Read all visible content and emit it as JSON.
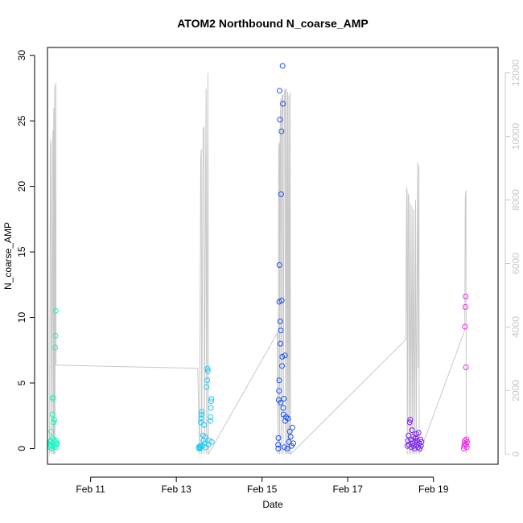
{
  "chart_data": {
    "type": "scatter",
    "title": "ATOM2 Northbound N_coarse_AMP",
    "xlabel": "Date",
    "ylabel": "N_coarse_AMP",
    "xlim": [
      "2024-02-09T23:50",
      "2024-02-20T12:10"
    ],
    "ylim": [
      -1.2,
      30.6
    ],
    "x_ticks": [
      {
        "label": "Feb 11",
        "value": "2024-02-11T00:00"
      },
      {
        "label": "Feb 13",
        "value": "2024-02-13T00:00"
      },
      {
        "label": "Feb 15",
        "value": "2024-02-15T00:00"
      },
      {
        "label": "Feb 17",
        "value": "2024-02-17T00:00"
      },
      {
        "label": "Feb 19",
        "value": "2024-02-19T00:00"
      }
    ],
    "y_ticks": [
      0,
      5,
      10,
      15,
      20,
      25,
      30
    ],
    "y2_ticks": [
      0,
      2000,
      4000,
      6000,
      8000,
      10000,
      12000
    ],
    "y2lim": [
      -320,
      12800
    ],
    "grid": false,
    "legend": "none",
    "gray_line_color": "#c8c8c8",
    "series": [
      {
        "color": "#22f5c0",
        "points": [
          [
            "2024-02-10T01:10",
            0.1
          ],
          [
            "2024-02-10T01:20",
            0.3
          ],
          [
            "2024-02-10T01:30",
            0.5
          ],
          [
            "2024-02-10T01:40",
            0.2
          ],
          [
            "2024-02-10T01:50",
            0.6
          ],
          [
            "2024-02-10T02:00",
            1.3
          ],
          [
            "2024-02-10T02:10",
            0.0
          ],
          [
            "2024-02-10T02:20",
            0.4
          ],
          [
            "2024-02-10T02:30",
            0.8
          ],
          [
            "2024-02-10T02:40",
            2.6
          ],
          [
            "2024-02-10T02:50",
            3.8
          ],
          [
            "2024-02-10T03:00",
            3.9
          ],
          [
            "2024-02-10T03:10",
            0.2
          ],
          [
            "2024-02-10T03:20",
            2.0
          ],
          [
            "2024-02-10T03:30",
            0.7
          ],
          [
            "2024-02-10T03:40",
            2.2
          ],
          [
            "2024-02-10T03:50",
            0.1
          ],
          [
            "2024-02-10T04:00",
            0.5
          ],
          [
            "2024-02-10T04:10",
            7.7
          ],
          [
            "2024-02-10T04:20",
            8.6
          ],
          [
            "2024-02-10T04:30",
            10.5
          ],
          [
            "2024-02-10T04:40",
            0.3
          ],
          [
            "2024-02-10T04:50",
            0.6
          ],
          [
            "2024-02-10T05:00",
            0.1
          ],
          [
            "2024-02-10T05:10",
            0.4
          ]
        ]
      },
      {
        "color": "#22c8f0",
        "points": [
          [
            "2024-02-13T12:30",
            0.1
          ],
          [
            "2024-02-13T12:50",
            0.0
          ],
          [
            "2024-02-13T13:10",
            0.2
          ],
          [
            "2024-02-13T13:20",
            0.1
          ],
          [
            "2024-02-13T13:30",
            0.0
          ],
          [
            "2024-02-13T13:40",
            2.0
          ],
          [
            "2024-02-13T13:50",
            2.3
          ],
          [
            "2024-02-13T14:00",
            2.6
          ],
          [
            "2024-02-13T14:10",
            2.8
          ],
          [
            "2024-02-13T14:30",
            0.2
          ],
          [
            "2024-02-13T15:00",
            1.0
          ],
          [
            "2024-02-13T15:10",
            0.6
          ],
          [
            "2024-02-13T15:30",
            1.8
          ],
          [
            "2024-02-13T15:50",
            0.4
          ],
          [
            "2024-02-13T16:10",
            0.9
          ],
          [
            "2024-02-13T16:30",
            0.1
          ],
          [
            "2024-02-13T17:00",
            4.7
          ],
          [
            "2024-02-13T17:20",
            5.2
          ],
          [
            "2024-02-13T17:30",
            6.1
          ],
          [
            "2024-02-13T17:40",
            5.9
          ],
          [
            "2024-02-13T18:00",
            0.3
          ],
          [
            "2024-02-13T18:30",
            0.6
          ],
          [
            "2024-02-13T19:00",
            2.1
          ],
          [
            "2024-02-13T19:10",
            2.4
          ],
          [
            "2024-02-13T19:20",
            3.1
          ],
          [
            "2024-02-13T19:30",
            3.6
          ],
          [
            "2024-02-13T19:40",
            3.8
          ],
          [
            "2024-02-13T19:50",
            0.5
          ]
        ]
      },
      {
        "color": "#1a50f0",
        "points": [
          [
            "2024-02-15T09:00",
            0.3
          ],
          [
            "2024-02-15T09:10",
            0.8
          ],
          [
            "2024-02-15T09:20",
            3.7
          ],
          [
            "2024-02-15T09:30",
            4.4
          ],
          [
            "2024-02-15T09:35",
            5.2
          ],
          [
            "2024-02-15T09:40",
            11.2
          ],
          [
            "2024-02-15T09:45",
            14.0
          ],
          [
            "2024-02-15T09:50",
            27.3
          ],
          [
            "2024-02-15T10:00",
            25.1
          ],
          [
            "2024-02-15T10:10",
            9.7
          ],
          [
            "2024-02-15T10:20",
            8.0
          ],
          [
            "2024-02-15T10:30",
            9.0
          ],
          [
            "2024-02-15T10:40",
            19.4
          ],
          [
            "2024-02-15T10:50",
            24.2
          ],
          [
            "2024-02-15T11:00",
            11.3
          ],
          [
            "2024-02-15T11:10",
            6.3
          ],
          [
            "2024-02-15T11:20",
            7.0
          ],
          [
            "2024-02-15T11:30",
            29.2
          ],
          [
            "2024-02-15T11:40",
            26.3
          ],
          [
            "2024-02-15T11:50",
            3.1
          ],
          [
            "2024-02-15T12:00",
            2.6
          ],
          [
            "2024-02-15T12:30",
            0.1
          ],
          [
            "2024-02-15T13:00",
            2.1
          ],
          [
            "2024-02-15T13:30",
            2.4
          ],
          [
            "2024-02-15T14:00",
            0.0
          ],
          [
            "2024-02-15T14:30",
            2.3
          ],
          [
            "2024-02-15T15:00",
            0.5
          ],
          [
            "2024-02-15T15:30",
            1.3
          ],
          [
            "2024-02-15T16:00",
            0.9
          ],
          [
            "2024-02-15T16:30",
            0.2
          ],
          [
            "2024-02-15T17:00",
            1.6
          ],
          [
            "2024-02-15T17:30",
            0.4
          ],
          [
            "2024-02-15T09:05",
            0.0
          ],
          [
            "2024-02-15T12:10",
            3.8
          ],
          [
            "2024-02-15T12:50",
            7.1
          ],
          [
            "2024-02-15T10:25",
            3.5
          ]
        ]
      },
      {
        "color": "#7a1ef0",
        "points": [
          [
            "2024-02-18T09:20",
            0.2
          ],
          [
            "2024-02-18T09:40",
            0.6
          ],
          [
            "2024-02-18T10:00",
            1.0
          ],
          [
            "2024-02-18T10:20",
            0.3
          ],
          [
            "2024-02-18T10:40",
            2.0
          ],
          [
            "2024-02-18T11:00",
            2.2
          ],
          [
            "2024-02-18T11:20",
            0.7
          ],
          [
            "2024-02-18T11:40",
            0.1
          ],
          [
            "2024-02-18T12:00",
            1.4
          ],
          [
            "2024-02-18T12:20",
            0.4
          ],
          [
            "2024-02-18T12:40",
            0.9
          ],
          [
            "2024-02-18T13:00",
            0.2
          ],
          [
            "2024-02-18T13:20",
            0.0
          ],
          [
            "2024-02-18T13:40",
            0.5
          ],
          [
            "2024-02-18T14:00",
            0.8
          ],
          [
            "2024-02-18T14:20",
            1.1
          ],
          [
            "2024-02-18T14:40",
            0.3
          ],
          [
            "2024-02-18T15:00",
            0.6
          ],
          [
            "2024-02-18T15:20",
            0.1
          ],
          [
            "2024-02-18T15:40",
            1.2
          ],
          [
            "2024-02-18T16:00",
            0.4
          ],
          [
            "2024-02-18T16:20",
            0.0
          ],
          [
            "2024-02-18T16:40",
            0.7
          ],
          [
            "2024-02-18T17:00",
            0.2
          ],
          [
            "2024-02-18T17:20",
            0.5
          ]
        ]
      },
      {
        "color": "#f022f0",
        "points": [
          [
            "2024-02-19T17:00",
            0.0
          ],
          [
            "2024-02-19T17:10",
            0.2
          ],
          [
            "2024-02-19T17:20",
            0.4
          ],
          [
            "2024-02-19T17:30",
            0.6
          ],
          [
            "2024-02-19T17:40",
            9.3
          ],
          [
            "2024-02-19T17:50",
            10.8
          ],
          [
            "2024-02-19T18:00",
            11.6
          ],
          [
            "2024-02-19T18:10",
            6.2
          ],
          [
            "2024-02-19T18:20",
            0.3
          ],
          [
            "2024-02-19T18:30",
            0.7
          ],
          [
            "2024-02-19T18:40",
            0.1
          ],
          [
            "2024-02-19T18:50",
            0.5
          ]
        ]
      }
    ],
    "gray_line": [
      [
        "2024-02-10T01:00",
        0
      ],
      [
        "2024-02-10T01:30",
        9700
      ],
      [
        "2024-02-10T01:50",
        9900
      ],
      [
        "2024-02-10T02:00",
        0
      ],
      [
        "2024-02-10T02:50",
        10200
      ],
      [
        "2024-02-10T03:00",
        0
      ],
      [
        "2024-02-10T03:20",
        10900
      ],
      [
        "2024-02-10T03:30",
        0
      ],
      [
        "2024-02-10T03:50",
        11600
      ],
      [
        "2024-02-10T04:00",
        0
      ],
      [
        "2024-02-10T04:30",
        11700
      ],
      [
        "2024-02-10T04:40",
        2800
      ],
      [
        "2024-02-13T12:00",
        2700
      ],
      [
        "2024-02-13T13:00",
        0
      ],
      [
        "2024-02-13T13:40",
        9300
      ],
      [
        "2024-02-13T14:00",
        9600
      ],
      [
        "2024-02-13T14:10",
        0
      ],
      [
        "2024-02-13T15:00",
        10200
      ],
      [
        "2024-02-13T15:30",
        10300
      ],
      [
        "2024-02-13T15:40",
        0
      ],
      [
        "2024-02-13T16:40",
        11500
      ],
      [
        "2024-02-13T17:00",
        0
      ],
      [
        "2024-02-13T17:40",
        12000
      ],
      [
        "2024-02-13T18:00",
        0
      ],
      [
        "2024-02-15T08:30",
        3800
      ],
      [
        "2024-02-15T09:00",
        0
      ],
      [
        "2024-02-15T09:20",
        9600
      ],
      [
        "2024-02-15T09:40",
        9800
      ],
      [
        "2024-02-15T09:50",
        0
      ],
      [
        "2024-02-15T10:10",
        10300
      ],
      [
        "2024-02-15T10:30",
        11200
      ],
      [
        "2024-02-15T10:40",
        0
      ],
      [
        "2024-02-15T11:10",
        11300
      ],
      [
        "2024-02-15T11:40",
        11300
      ],
      [
        "2024-02-15T11:50",
        0
      ],
      [
        "2024-02-15T12:30",
        11400
      ],
      [
        "2024-02-15T13:00",
        11500
      ],
      [
        "2024-02-15T13:10",
        0
      ],
      [
        "2024-02-15T13:40",
        11500
      ],
      [
        "2024-02-15T14:00",
        0
      ],
      [
        "2024-02-15T14:20",
        11400
      ],
      [
        "2024-02-15T14:40",
        0
      ],
      [
        "2024-02-15T15:00",
        11300
      ],
      [
        "2024-02-15T15:20",
        0
      ],
      [
        "2024-02-15T15:40",
        11400
      ],
      [
        "2024-02-15T16:00",
        0
      ],
      [
        "2024-02-18T08:30",
        3600
      ],
      [
        "2024-02-18T09:00",
        8400
      ],
      [
        "2024-02-18T09:10",
        8300
      ],
      [
        "2024-02-18T09:20",
        0
      ],
      [
        "2024-02-18T09:50",
        8200
      ],
      [
        "2024-02-18T10:10",
        8100
      ],
      [
        "2024-02-18T10:20",
        0
      ],
      [
        "2024-02-18T11:00",
        7900
      ],
      [
        "2024-02-18T11:20",
        0
      ],
      [
        "2024-02-18T12:00",
        7800
      ],
      [
        "2024-02-18T12:20",
        0
      ],
      [
        "2024-02-18T13:00",
        7700
      ],
      [
        "2024-02-18T13:20",
        0
      ],
      [
        "2024-02-18T14:00",
        8000
      ],
      [
        "2024-02-18T14:20",
        0
      ],
      [
        "2024-02-18T15:10",
        9200
      ],
      [
        "2024-02-18T15:30",
        2700
      ],
      [
        "2024-02-18T15:50",
        9100
      ],
      [
        "2024-02-18T16:00",
        0
      ],
      [
        "2024-02-19T17:30",
        3900
      ],
      [
        "2024-02-19T17:50",
        8100
      ],
      [
        "2024-02-19T18:10",
        8300
      ],
      [
        "2024-02-19T18:20",
        0
      ]
    ]
  }
}
